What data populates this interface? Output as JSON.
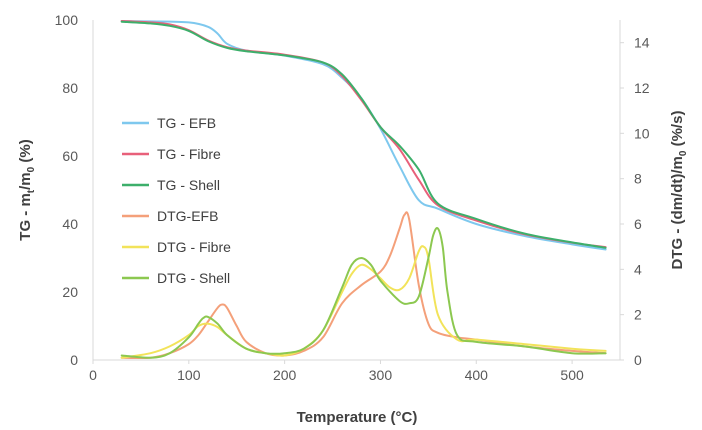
{
  "chart_data": {
    "type": "line",
    "xlabel": "Temperature (°C)",
    "ylabel_left": {
      "prefix": "TG - m",
      "sub1": "t",
      "mid": "/m",
      "sub2": "0",
      "suffix": " (%)"
    },
    "ylabel_right": {
      "prefix": "DTG - (dm/dt)/m",
      "sub": "0",
      "suffix": " (%/s)"
    },
    "xlim": [
      0,
      550
    ],
    "xticks": [
      0,
      100,
      200,
      300,
      400,
      500
    ],
    "ylim_left": [
      0,
      100
    ],
    "yticks_left": [
      0,
      20,
      40,
      60,
      80,
      100
    ],
    "ylim_right": [
      0,
      15
    ],
    "yticks_right": [
      0,
      2,
      4,
      6,
      8,
      10,
      12,
      14
    ],
    "grid": false,
    "legend_position": "left",
    "series": [
      {
        "name": "TG - EFB",
        "axis": "left",
        "color": "#7EC8EE",
        "x": [
          30,
          60,
          100,
          120,
          130,
          140,
          160,
          200,
          240,
          260,
          280,
          300,
          320,
          340,
          360,
          400,
          450,
          500,
          535
        ],
        "y": [
          99.7,
          99.6,
          99.3,
          98,
          96,
          93,
          91,
          89.5,
          87,
          83,
          77,
          68,
          57,
          47,
          44.5,
          40,
          36.5,
          34,
          32.5
        ]
      },
      {
        "name": "TG - Fibre",
        "axis": "left",
        "color": "#E8607A",
        "x": [
          30,
          60,
          80,
          100,
          120,
          140,
          160,
          200,
          240,
          260,
          280,
          300,
          320,
          340,
          360,
          400,
          450,
          500,
          535
        ],
        "y": [
          99.7,
          99.3,
          98.7,
          97,
          94,
          92,
          91,
          89.8,
          87.5,
          83.5,
          76.5,
          68.5,
          62,
          53,
          45.5,
          41,
          37,
          34.5,
          33.2
        ]
      },
      {
        "name": "TG - Shell",
        "axis": "left",
        "color": "#3DAF6B",
        "x": [
          30,
          60,
          80,
          100,
          120,
          140,
          160,
          200,
          240,
          260,
          280,
          300,
          320,
          340,
          360,
          400,
          450,
          500,
          535
        ],
        "y": [
          99.5,
          99.0,
          98.3,
          96.8,
          93.8,
          91.8,
          90.8,
          89.6,
          87.5,
          84,
          77,
          68.5,
          63,
          56,
          46,
          41.5,
          37.2,
          34.6,
          33
        ]
      },
      {
        "name": "DTG-EFB",
        "axis": "right",
        "color": "#F4A07A",
        "x": [
          30,
          60,
          80,
          100,
          110,
          120,
          130,
          135,
          140,
          150,
          160,
          180,
          200,
          220,
          240,
          260,
          280,
          300,
          310,
          320,
          325,
          330,
          340,
          350,
          360,
          380,
          400,
          450,
          500,
          535
        ],
        "y": [
          0.1,
          0.1,
          0.3,
          0.7,
          1.1,
          1.7,
          2.3,
          2.45,
          2.3,
          1.5,
          0.8,
          0.3,
          0.2,
          0.4,
          1.0,
          2.5,
          3.3,
          3.9,
          4.6,
          5.8,
          6.4,
          6.2,
          3.3,
          1.6,
          1.2,
          1.0,
          0.9,
          0.6,
          0.4,
          0.3
        ]
      },
      {
        "name": "DTG - Fibre",
        "axis": "right",
        "color": "#F2E35A",
        "x": [
          30,
          60,
          80,
          100,
          110,
          120,
          130,
          140,
          160,
          180,
          200,
          220,
          240,
          260,
          270,
          280,
          290,
          300,
          310,
          320,
          330,
          340,
          345,
          350,
          360,
          380,
          400,
          450,
          500,
          535
        ],
        "y": [
          0.1,
          0.3,
          0.6,
          1.1,
          1.5,
          1.6,
          1.45,
          1.1,
          0.5,
          0.3,
          0.2,
          0.5,
          1.3,
          3.0,
          3.8,
          4.2,
          4.0,
          3.6,
          3.2,
          3.1,
          3.6,
          4.8,
          5.0,
          4.5,
          2.0,
          0.9,
          0.9,
          0.7,
          0.5,
          0.4
        ]
      },
      {
        "name": "DTG - Shell",
        "axis": "right",
        "color": "#8CC850",
        "x": [
          30,
          60,
          80,
          100,
          110,
          115,
          120,
          130,
          140,
          160,
          180,
          200,
          220,
          240,
          260,
          270,
          280,
          290,
          300,
          320,
          330,
          340,
          350,
          355,
          360,
          365,
          370,
          380,
          400,
          450,
          500,
          535
        ],
        "y": [
          0.2,
          0.1,
          0.3,
          1.0,
          1.6,
          1.85,
          1.9,
          1.6,
          1.1,
          0.5,
          0.3,
          0.3,
          0.5,
          1.3,
          3.2,
          4.2,
          4.5,
          4.2,
          3.5,
          2.6,
          2.5,
          2.8,
          4.5,
          5.5,
          5.8,
          5.0,
          3.0,
          1.1,
          0.8,
          0.6,
          0.3,
          0.3
        ]
      }
    ]
  }
}
